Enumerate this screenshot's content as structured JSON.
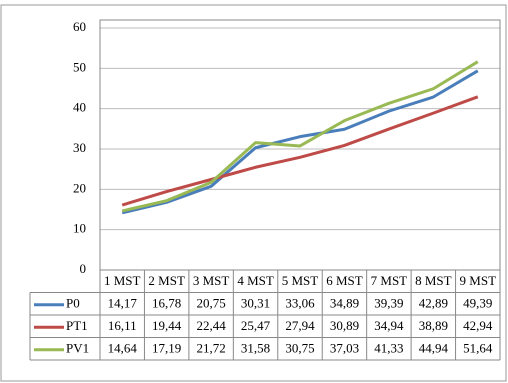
{
  "chart_data": {
    "type": "line",
    "categories": [
      "1 MST",
      "2 MST",
      "3 MST",
      "4 MST",
      "5 MST",
      "6 MST",
      "7 MST",
      "8 MST",
      "9 MST"
    ],
    "series": [
      {
        "name": "P0",
        "color": "#4a7ebb",
        "values": [
          14.17,
          16.78,
          20.75,
          30.31,
          33.06,
          34.89,
          39.39,
          42.89,
          49.39
        ],
        "value_labels": [
          "14,17",
          "16,78",
          "20,75",
          "30,31",
          "33,06",
          "34,89",
          "39,39",
          "42,89",
          "49,39"
        ]
      },
      {
        "name": "PT1",
        "color": "#be4b48",
        "values": [
          16.11,
          19.44,
          22.44,
          25.47,
          27.94,
          30.89,
          34.94,
          38.89,
          42.94
        ],
        "value_labels": [
          "16,11",
          "19,44",
          "22,44",
          "25,47",
          "27,94",
          "30,89",
          "34,94",
          "38,89",
          "42,94"
        ]
      },
      {
        "name": "PV1",
        "color": "#98b954",
        "values": [
          14.64,
          17.19,
          21.72,
          31.58,
          30.75,
          37.03,
          41.33,
          44.94,
          51.64
        ],
        "value_labels": [
          "14,64",
          "17,19",
          "21,72",
          "31,58",
          "30,75",
          "37,03",
          "41,33",
          "44,94",
          "51,64"
        ]
      }
    ],
    "ylim": [
      0,
      60
    ],
    "yticks": [
      0,
      10,
      20,
      30,
      40,
      50,
      60
    ],
    "grid": true
  }
}
